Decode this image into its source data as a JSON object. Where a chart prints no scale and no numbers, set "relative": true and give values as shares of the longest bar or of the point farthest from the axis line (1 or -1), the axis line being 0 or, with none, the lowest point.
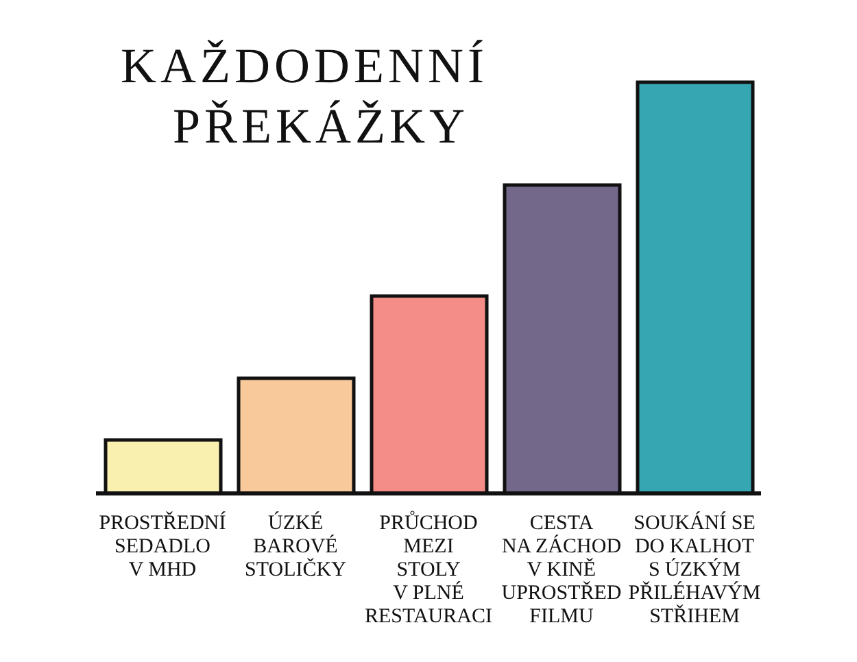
{
  "chart_data": {
    "type": "bar",
    "title": "KAŽDODENNÍ\nPŘEKÁŽKY",
    "relative": true,
    "categories": [
      "PROSTŘEDNÍ\nSEDADLO\nV MHD",
      "ÚZKÉ\nBAROVÉ\nSTOLIČKY",
      "PRŮCHOD\nMEZI\nSTOLY\nV PLNÉ\nRESTAURACI",
      "CESTA\nNA ZÁCHOD\nV KINĚ\nUPROSTŘED\nFILMU",
      "SOUKÁNÍ SE\nDO KALHOT\nS ÚZKÝM\nPŘILÉHAVÝM\nSTŘIHEM"
    ],
    "values": [
      0.13,
      0.28,
      0.48,
      0.75,
      1
    ],
    "colors": [
      "#f9f0b0",
      "#f8c99a",
      "#f48c88",
      "#73678a",
      "#36a6b2"
    ]
  }
}
